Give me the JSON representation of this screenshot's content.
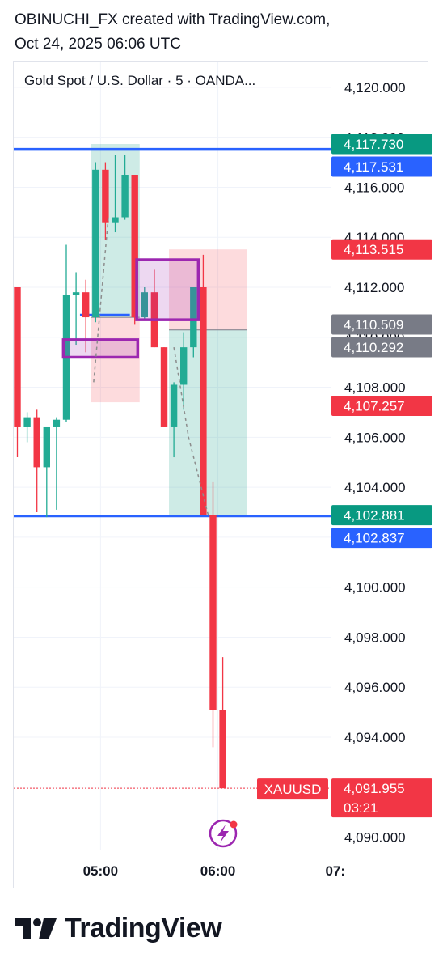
{
  "header": {
    "line1": "OBINUCHI_FX created with TradingView.com,",
    "line2": "Oct 24, 2025 06:06 UTC"
  },
  "symbol_label": "Gold Spot / U.S. Dollar · 5 · OANDA...",
  "footer": {
    "logo_text": "TradingView"
  },
  "colors": {
    "up": "#22ab94",
    "down": "#f23645",
    "level_line": "#2962ff",
    "zone_border": "#9c27b0",
    "gray_tag": "#787b86",
    "grid": "#f0f3fa"
  },
  "chart_data": {
    "type": "candlestick",
    "symbol": "XAUUSD",
    "title": "Gold Spot / U.S. Dollar · 5 · OANDA...",
    "ylim": [
      4089.5,
      4121.0
    ],
    "grid": true,
    "y_ticks": [
      "4,120.000",
      "4,118.000",
      "4,116.000",
      "4,114.000",
      "4,112.000",
      "4,110.000",
      "4,108.000",
      "4,106.000",
      "4,104.000",
      "4,102.000",
      "4,100.000",
      "4,098.000",
      "4,096.000",
      "4,094.000",
      "4,092.000",
      "4,090.000"
    ],
    "y_tick_values": [
      4120,
      4118,
      4116,
      4114,
      4112,
      4110,
      4108,
      4106,
      4104,
      4102,
      4100,
      4098,
      4096,
      4094,
      4092,
      4090
    ],
    "x_ticks": [
      {
        "label": "05:00",
        "index": 8.5
      },
      {
        "label": "06:00",
        "index": 20.5
      },
      {
        "label": "07:",
        "index": 32.5
      }
    ],
    "candles": [
      {
        "o": 4112.0,
        "h": 4112.0,
        "l": 4105.2,
        "c": 4106.4
      },
      {
        "o": 4106.4,
        "h": 4107.0,
        "l": 4105.8,
        "c": 4106.8
      },
      {
        "o": 4106.8,
        "h": 4107.1,
        "l": 4103.0,
        "c": 4104.8
      },
      {
        "o": 4104.8,
        "h": 4106.4,
        "l": 4102.8,
        "c": 4106.4
      },
      {
        "o": 4106.4,
        "h": 4106.8,
        "l": 4103.1,
        "c": 4106.7
      },
      {
        "o": 4106.7,
        "h": 4113.7,
        "l": 4106.6,
        "c": 4111.7
      },
      {
        "o": 4111.7,
        "h": 4112.6,
        "l": 4109.7,
        "c": 4111.8
      },
      {
        "o": 4111.8,
        "h": 4112.3,
        "l": 4109.4,
        "c": 4110.8
      },
      {
        "o": 4110.8,
        "h": 4117.0,
        "l": 4110.6,
        "c": 4116.7
      },
      {
        "o": 4116.7,
        "h": 4117.0,
        "l": 4113.9,
        "c": 4114.6
      },
      {
        "o": 4114.6,
        "h": 4117.3,
        "l": 4114.2,
        "c": 4114.8
      },
      {
        "o": 4114.8,
        "h": 4117.3,
        "l": 4114.7,
        "c": 4116.5
      },
      {
        "o": 4116.5,
        "h": 4116.5,
        "l": 4110.5,
        "c": 4110.8
      },
      {
        "o": 4110.8,
        "h": 4112.0,
        "l": 4110.7,
        "c": 4111.8
      },
      {
        "o": 4111.8,
        "h": 4112.7,
        "l": 4109.6,
        "c": 4109.6
      },
      {
        "o": 4109.6,
        "h": 4109.6,
        "l": 4106.4,
        "c": 4106.4
      },
      {
        "o": 4106.4,
        "h": 4108.2,
        "l": 4105.2,
        "c": 4108.1
      },
      {
        "o": 4108.1,
        "h": 4110.2,
        "l": 4107.1,
        "c": 4109.6
      },
      {
        "o": 4109.6,
        "h": 4112.0,
        "l": 4109.2,
        "c": 4112.0
      },
      {
        "o": 4112.0,
        "h": 4113.3,
        "l": 4102.9,
        "c": 4102.9
      },
      {
        "o": 4102.9,
        "h": 4104.2,
        "l": 4093.6,
        "c": 4095.1
      },
      {
        "o": 4095.1,
        "h": 4097.2,
        "l": 4092.0,
        "c": 4091.955
      }
    ],
    "horizontal_levels": [
      {
        "price": 4117.531,
        "label": "4,117.531",
        "color": "#2962ff"
      },
      {
        "price": 4102.837,
        "label": "4,102.837",
        "color": "#2962ff"
      }
    ],
    "price_tags": [
      {
        "price": 4117.73,
        "label": "4,117.730",
        "color": "#089981"
      },
      {
        "price": 4117.531,
        "label": "4,117.531",
        "color": "#2962ff"
      },
      {
        "price": 4113.515,
        "label": "4,113.515",
        "color": "#f23645"
      },
      {
        "price": 4110.509,
        "label": "4,110.509",
        "color": "#787b86"
      },
      {
        "price": 4110.292,
        "label": "4,110.292",
        "color": "#787b86"
      },
      {
        "price": 4107.257,
        "label": "4,107.257",
        "color": "#f23645"
      },
      {
        "price": 4102.881,
        "label": "4,102.881",
        "color": "#089981"
      },
      {
        "price": 4102.837,
        "label": "4,102.837",
        "color": "#2962ff"
      }
    ],
    "last_price": {
      "price": 4091.955,
      "label": "4,091.955",
      "countdown": "03:21",
      "symbol_tag": "XAUUSD",
      "color": "#f23645"
    },
    "zones": [
      {
        "kind": "short-position",
        "i0": 7.5,
        "i1": 12.5,
        "entry": 4110.8,
        "stop": 4107.4,
        "target": 4117.73
      },
      {
        "kind": "short-position",
        "i0": 15.5,
        "i1": 23.5,
        "entry": 4110.292,
        "stop": 4113.515,
        "target": 4102.881
      }
    ],
    "boxes": [
      {
        "kind": "order-block",
        "i0": 4.7,
        "i1": 12.3,
        "top": 4109.9,
        "bottom": 4109.2
      },
      {
        "kind": "order-block",
        "i0": 12.2,
        "i1": 18.5,
        "top": 4113.1,
        "bottom": 4110.7
      }
    ],
    "small_lines": [
      {
        "i0": 6.4,
        "i1": 11.5,
        "price": 4110.9
      }
    ],
    "paths": [
      {
        "kind": "projection",
        "points": [
          [
            7.8,
            4108.2
          ],
          [
            9.3,
            4114.8
          ]
        ]
      },
      {
        "kind": "projection",
        "points": [
          [
            16.0,
            4109.6
          ],
          [
            17.5,
            4106.0
          ],
          [
            19.5,
            4102.9
          ]
        ]
      }
    ]
  }
}
